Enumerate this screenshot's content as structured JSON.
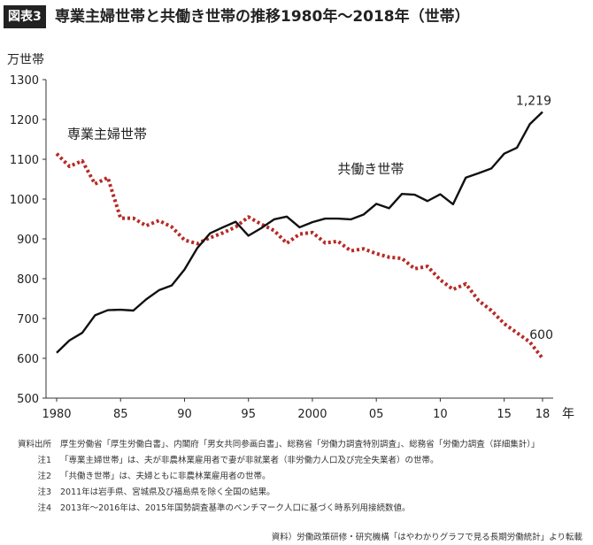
{
  "badge": "図表3",
  "title": "専業主婦世帯と共働き世帯の推移1980年〜2018年（世帯）",
  "chart_data": {
    "type": "line",
    "ylabel": "万世帯",
    "xlabel": "年",
    "ylim": [
      500,
      1300
    ],
    "yticks": [
      500,
      600,
      700,
      800,
      900,
      1000,
      1100,
      1200,
      1300
    ],
    "xticks": [
      1980,
      1985,
      1990,
      1995,
      2000,
      2005,
      2010,
      2015,
      2018
    ],
    "xtick_labels": [
      "1980",
      "85",
      "90",
      "95",
      "2000",
      "05",
      "10",
      "15",
      "18"
    ],
    "grid": false,
    "x": [
      1980,
      1981,
      1982,
      1983,
      1984,
      1985,
      1986,
      1987,
      1988,
      1989,
      1990,
      1991,
      1992,
      1993,
      1994,
      1995,
      1996,
      1997,
      1998,
      1999,
      2000,
      2001,
      2002,
      2003,
      2004,
      2005,
      2006,
      2007,
      2008,
      2009,
      2010,
      2011,
      2012,
      2013,
      2014,
      2015,
      2016,
      2017,
      2018
    ],
    "series": [
      {
        "name": "専業主婦世帯",
        "color": "#b52b27",
        "style": "dotted",
        "values": [
          1114,
          1082,
          1096,
          1038,
          1054,
          952,
          952,
          933,
          946,
          930,
          897,
          888,
          903,
          915,
          930,
          955,
          937,
          921,
          889,
          912,
          916,
          890,
          894,
          870,
          875,
          863,
          854,
          851,
          825,
          831,
          797,
          773,
          787,
          745,
          720,
          687,
          664,
          641,
          600
        ]
      },
      {
        "name": "共働き世帯",
        "color": "#111111",
        "style": "solid",
        "values": [
          614,
          645,
          664,
          708,
          721,
          722,
          720,
          748,
          771,
          783,
          823,
          877,
          914,
          929,
          943,
          908,
          927,
          949,
          956,
          929,
          942,
          951,
          951,
          949,
          961,
          988,
          977,
          1013,
          1011,
          995,
          1012,
          987,
          1054,
          1065,
          1077,
          1114,
          1129,
          1188,
          1219
        ]
      }
    ],
    "series_labels": {
      "housewife": "専業主婦世帯",
      "dual": "共働き世帯"
    },
    "end_labels": {
      "dual": "1,219",
      "housewife": "600"
    }
  },
  "notes": [
    {
      "label": "資料出所",
      "text": "厚生労働省「厚生労働白書」、内閣府「男女共同参画白書」、総務省「労働力調査特別調査」、総務省「労働力調査（詳細集計）」"
    },
    {
      "label": "注1",
      "text": "「専業主婦世帯」は、夫が非農林業雇用者で妻が非就業者（非労働力人口及び完全失業者）の世帯。"
    },
    {
      "label": "注2",
      "text": "「共働き世帯」は、夫婦ともに非農林業雇用者の世帯。"
    },
    {
      "label": "注3",
      "text": "2011年は岩手県、宮城県及び福島県を除く全国の結果。"
    },
    {
      "label": "注4",
      "text": "2013年〜2016年は、2015年国勢調査基準のベンチマーク人口に基づく時系列用接続数値。"
    }
  ],
  "source": "資料）労働政策研修・研究機構「はやわかりグラフで見る長期労働統計」より転載"
}
